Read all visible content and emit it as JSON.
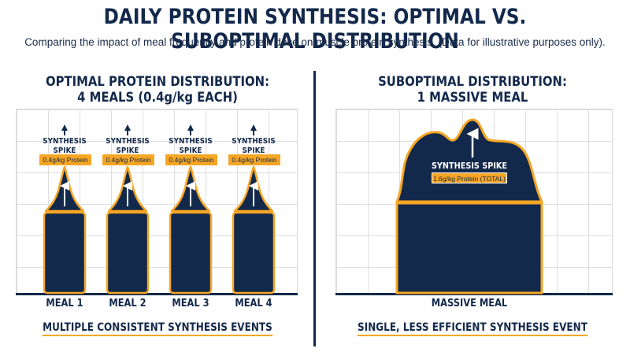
{
  "header": {
    "title": "DAILY PROTEIN SYNTHESIS: OPTIMAL VS. SUBOPTIMAL DISTRIBUTION",
    "subtitle": "Comparing the impact of meal frequency and protein dose on muscle protein synthesis. (Data for illustrative purposes only)."
  },
  "colors": {
    "navy": "#13294b",
    "orange": "#f6a623",
    "grid": "#dedede"
  },
  "optimal": {
    "heading_line1": "OPTIMAL PROTEIN DISTRIBUTION:",
    "heading_line2": "4 MEALS (0.4g/kg EACH)",
    "spike_line1": "SYNTHESIS",
    "spike_line2": "SPIKE",
    "meals": [
      {
        "label": "MEAL 1",
        "protein": "0.4g/kg Protein"
      },
      {
        "label": "MEAL 2",
        "protein": "0.4g/kg Protein"
      },
      {
        "label": "MEAL 3",
        "protein": "0.4g/kg Protein"
      },
      {
        "label": "MEAL 4",
        "protein": "0.4g/kg Protein"
      }
    ],
    "footer": "MULTIPLE CONSISTENT SYNTHESIS EVENTS"
  },
  "suboptimal": {
    "heading_line1": "SUBOPTIMAL DISTRIBUTION:",
    "heading_line2": "1 MASSIVE MEAL",
    "spike_label": "SYNTHESIS SPIKE",
    "protein": "1.6g/kg Protein (TOTAL)",
    "meal_label": "MASSIVE MEAL",
    "footer": "SINGLE, LESS EFFICIENT SYNTHESIS EVENT"
  }
}
